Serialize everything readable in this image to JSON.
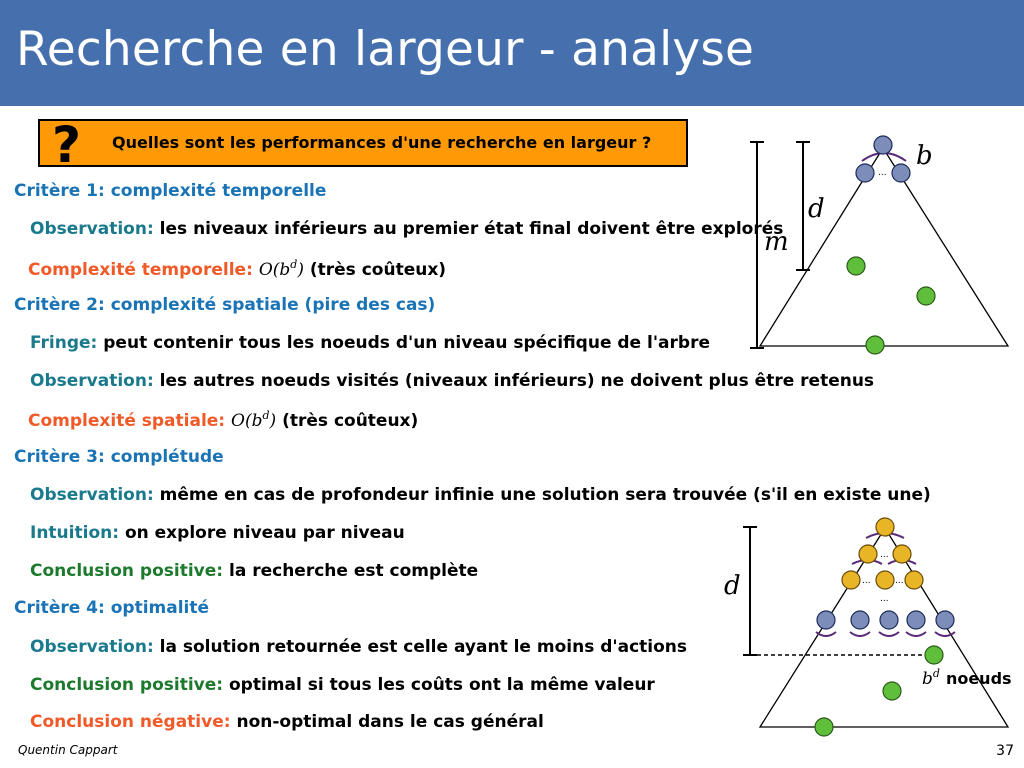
{
  "slide": {
    "title": "Recherche en largeur - analyse",
    "question": {
      "icon": "question-mark-icon",
      "mark": "?",
      "text": "Quelles sont les performances d'une recherche en largeur ?"
    },
    "criteria": [
      {
        "heading": "Critère 1: complexité temporelle",
        "items": [
          {
            "label": "Observation:",
            "text": "les niveaux inférieurs au premier état final doivent être explorés"
          },
          {
            "label": "Complexité temporelle:",
            "math": "O(b",
            "exp": "d",
            "math_close": ")",
            "text": "(très coûteux)"
          }
        ]
      },
      {
        "heading": "Critère 2: complexité spatiale (pire des cas)",
        "items": [
          {
            "label": "Fringe:",
            "text": "peut contenir tous les noeuds d'un niveau spécifique de l'arbre"
          },
          {
            "label": "Observation:",
            "text": "les autres noeuds visités (niveaux inférieurs) ne doivent plus être retenus"
          },
          {
            "label": "Complexité spatiale:",
            "math": "O(b",
            "exp": "d",
            "math_close": ")",
            "text": "(très coûteux)"
          }
        ]
      },
      {
        "heading": "Critère 3: complétude",
        "items": [
          {
            "label": "Observation:",
            "text": "même en cas de profondeur infinie une solution sera trouvée (s'il en existe une)"
          },
          {
            "label": "Intuition:",
            "text": "on explore niveau par niveau"
          },
          {
            "label": "Conclusion positive:",
            "text": "la recherche est complète"
          }
        ]
      },
      {
        "heading": "Critère 4: optimalité",
        "items": [
          {
            "label": "Observation:",
            "text": "la solution retournée est celle ayant le moins d'actions"
          },
          {
            "label": "Conclusion positive:",
            "text": "optimal si tous les coûts ont la même valeur"
          },
          {
            "label": "Conclusion négative:",
            "text": "non-optimal dans le cas général"
          }
        ]
      }
    ],
    "figure_top": {
      "label_b": "b",
      "label_d": "d",
      "label_m": "m",
      "ellipsis": "..."
    },
    "figure_bottom": {
      "label_d": "d",
      "label_bd_base": "b",
      "label_bd_exp": "d",
      "label_nodes": "noeuds",
      "ellipsis": "..."
    },
    "colors": {
      "header": "#4570ad",
      "question_box": "#ff9a06",
      "heading": "#1a73b5",
      "observation": "#1a7a8c",
      "complexity": "#f05a28",
      "conclusion_positive": "#1d7a2d",
      "node_gray": "#7b8db8",
      "node_green": "#5fbf3a",
      "node_yellow": "#e8b526",
      "arc_purple": "#5a2a7a"
    }
  },
  "footer": {
    "author": "Quentin Cappart",
    "page": "37"
  }
}
